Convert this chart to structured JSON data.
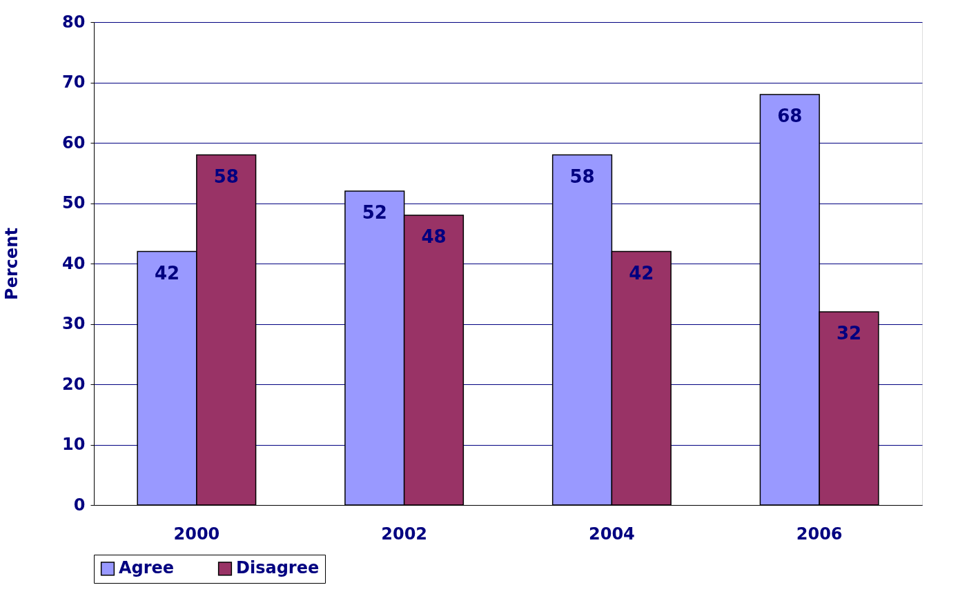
{
  "chart_data": {
    "type": "bar",
    "ylabel": "Percent",
    "categories": [
      "2000",
      "2002",
      "2004",
      "2006"
    ],
    "series": [
      {
        "name": "Agree",
        "color": "#9999ff",
        "values": [
          42,
          52,
          58,
          68
        ]
      },
      {
        "name": "Disagree",
        "color": "#993366",
        "values": [
          58,
          48,
          42,
          32
        ]
      }
    ],
    "ylim": [
      0,
      80
    ],
    "yticks": [
      0,
      10,
      20,
      30,
      40,
      50,
      60,
      70,
      80
    ],
    "grid": "y",
    "legend": "bottom",
    "data_labels": true
  }
}
